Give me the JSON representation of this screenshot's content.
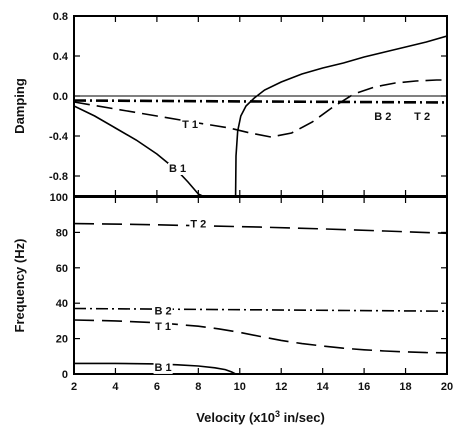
{
  "chart_data": [
    {
      "type": "line",
      "ylabel": "Damping",
      "xlim": [
        2,
        20
      ],
      "ylim": [
        -1.0,
        0.8
      ],
      "yticks": [
        0.8,
        0.4,
        0.0,
        -0.4,
        -0.8
      ],
      "ytick_labels": [
        "0.8",
        "0.4",
        "0.0",
        "-0.4",
        "-0.8"
      ],
      "grid": false,
      "series": [
        {
          "name": "B 1",
          "style": "solid",
          "x": [
            2,
            3,
            4,
            5,
            6,
            7,
            7.5,
            8,
            8.2
          ],
          "y": [
            -0.1,
            -0.2,
            -0.32,
            -0.44,
            -0.58,
            -0.75,
            -0.86,
            -0.98,
            -1.0
          ]
        },
        {
          "name": "",
          "style": "solid",
          "x": [
            9.8,
            9.82,
            9.9,
            10.05,
            10.3,
            10.7,
            11.2,
            12,
            13,
            14,
            15,
            16,
            17,
            18,
            19,
            20
          ],
          "y": [
            -1.0,
            -0.6,
            -0.35,
            -0.2,
            -0.1,
            -0.02,
            0.06,
            0.14,
            0.22,
            0.28,
            0.33,
            0.39,
            0.44,
            0.49,
            0.54,
            0.6
          ]
        },
        {
          "name": "T 1",
          "style": "dashed",
          "x": [
            2,
            4,
            6,
            8,
            9.5,
            10.5,
            11.5,
            12.5,
            13.5,
            14.5,
            15.5,
            16.5,
            17.5,
            18.5,
            19.5,
            20
          ],
          "y": [
            -0.06,
            -0.13,
            -0.2,
            -0.27,
            -0.32,
            -0.37,
            -0.41,
            -0.37,
            -0.26,
            -0.11,
            0.02,
            0.09,
            0.13,
            0.15,
            0.16,
            0.16
          ]
        },
        {
          "name": "B 2",
          "style": "dashdot",
          "x": [
            2,
            20
          ],
          "y": [
            -0.05,
            -0.07
          ]
        },
        {
          "name": "T 2",
          "style": "dashdot",
          "x": [
            2,
            20
          ],
          "y": [
            -0.04,
            -0.06
          ]
        },
        {
          "name": "",
          "style": "thin",
          "x": [
            2,
            20
          ],
          "y": [
            0.0,
            0.0
          ]
        }
      ],
      "annotations": [
        {
          "text": "T 1",
          "x": 7.6,
          "y": -0.28
        },
        {
          "text": "B 1",
          "x": 7.0,
          "y": -0.72
        },
        {
          "text": "B 2",
          "x": 16.9,
          "y": -0.2
        },
        {
          "text": "T 2",
          "x": 18.8,
          "y": -0.2
        }
      ]
    },
    {
      "type": "line",
      "xlabel_parts": [
        "Velocity (x10",
        "3",
        " in/sec)"
      ],
      "ylabel": "Frequency (Hz)",
      "xlim": [
        2,
        20
      ],
      "ylim": [
        0,
        100
      ],
      "xticks": [
        2,
        4,
        6,
        8,
        10,
        12,
        14,
        16,
        18,
        20
      ],
      "xtick_labels": [
        "2",
        "4",
        "6",
        "8",
        "10",
        "12",
        "14",
        "16",
        "18",
        "20"
      ],
      "yticks": [
        0,
        20,
        40,
        60,
        80,
        100
      ],
      "ytick_labels": [
        "0",
        "20",
        "40",
        "60",
        "80",
        "100"
      ],
      "grid": false,
      "series": [
        {
          "name": "T 2",
          "style": "longdash",
          "x": [
            2,
            5,
            8,
            11,
            14,
            17,
            20
          ],
          "y": [
            85,
            84.5,
            83.8,
            83,
            82,
            80.8,
            79.5
          ]
        },
        {
          "name": "B 2",
          "style": "dashdot",
          "x": [
            2,
            20
          ],
          "y": [
            37,
            35.5
          ]
        },
        {
          "name": "T 1",
          "style": "longdash",
          "x": [
            2,
            4,
            6,
            8,
            9,
            10,
            11,
            12,
            13,
            14,
            15,
            16,
            17,
            18,
            19,
            20
          ],
          "y": [
            30.5,
            30,
            29,
            27,
            25.5,
            23.5,
            21.2,
            19,
            17.2,
            15.8,
            14.6,
            13.7,
            13,
            12.5,
            12.1,
            12
          ]
        },
        {
          "name": "B 1",
          "style": "solid",
          "x": [
            2,
            4,
            6,
            7,
            8,
            8.8,
            9.3,
            9.6,
            9.8
          ],
          "y": [
            6,
            6,
            5.7,
            5.2,
            4.5,
            3.5,
            2.5,
            1.2,
            0
          ]
        }
      ],
      "annotations": [
        {
          "text": "T 2",
          "x": 8.0,
          "y": 85
        },
        {
          "text": "B 2",
          "x": 6.3,
          "y": 36
        },
        {
          "text": "T 1",
          "x": 6.3,
          "y": 27
        },
        {
          "text": "B 1",
          "x": 6.3,
          "y": 4
        }
      ]
    }
  ]
}
